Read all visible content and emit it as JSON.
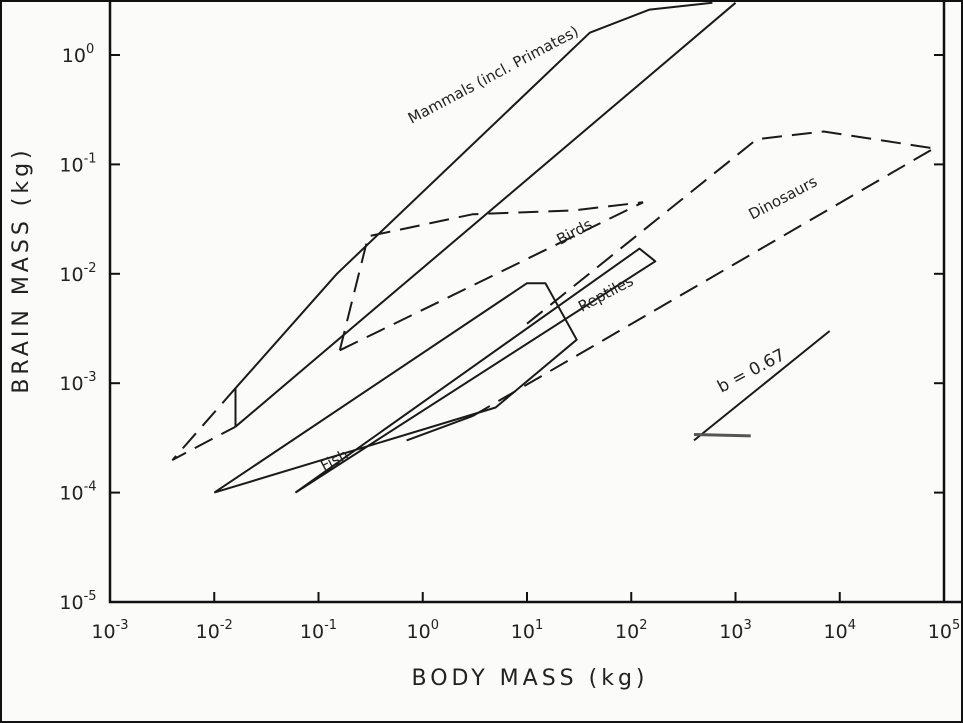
{
  "chart_data": {
    "type": "line",
    "xscale": "log",
    "yscale": "log",
    "xlim": [
      0.001,
      100000
    ],
    "ylim": [
      1e-05,
      3
    ],
    "xlabel": "BODY MASS (kg)",
    "ylabel": "BRAIN MASS (kg)",
    "x_tick_values": [
      0.001,
      0.01,
      0.1,
      1,
      10,
      100,
      1000,
      10000,
      100000
    ],
    "y_tick_values": [
      1e-05,
      0.0001,
      0.001,
      0.01,
      0.1,
      1
    ],
    "x_ticks": [
      {
        "m": "10",
        "e": "-3"
      },
      {
        "m": "10",
        "e": "-2"
      },
      {
        "m": "10",
        "e": "-1"
      },
      {
        "m": "10",
        "e": "0"
      },
      {
        "m": "10",
        "e": "1"
      },
      {
        "m": "10",
        "e": "2"
      },
      {
        "m": "10",
        "e": "3"
      },
      {
        "m": "10",
        "e": "4"
      },
      {
        "m": "10",
        "e": "5"
      }
    ],
    "y_ticks": [
      {
        "m": "10",
        "e": "-5"
      },
      {
        "m": "10",
        "e": "-4"
      },
      {
        "m": "10",
        "e": "-3"
      },
      {
        "m": "10",
        "e": "-2"
      },
      {
        "m": "10",
        "e": "-1"
      },
      {
        "m": "10",
        "e": "0"
      }
    ],
    "series": [
      {
        "name": "Mammals (incl. Primates)",
        "label_at": [
          5,
          0.6
        ],
        "lines": [
          {
            "style": "solid",
            "points": [
              [
                0.016,
                0.0009
              ],
              [
                0.15,
                0.01
              ],
              [
                40,
                1.6
              ],
              [
                150,
                2.6
              ],
              [
                600,
                3
              ]
            ]
          },
          {
            "style": "solid",
            "points": [
              [
                0.016,
                0.0004
              ],
              [
                1000,
                3
              ]
            ]
          },
          {
            "style": "solid",
            "points": [
              [
                0.016,
                0.0009
              ],
              [
                0.016,
                0.0004
              ]
            ]
          },
          {
            "style": "dashed",
            "points": [
              [
                0.016,
                0.0009
              ],
              [
                0.004,
                0.0002
              ],
              [
                0.016,
                0.0004
              ]
            ]
          }
        ]
      },
      {
        "name": "Birds",
        "label_at": [
          30,
          0.022
        ],
        "lines": [
          {
            "style": "dashed",
            "points": [
              [
                0.16,
                0.002
              ],
              [
                0.3,
                0.022
              ],
              [
                3,
                0.035
              ],
              [
                28,
                0.038
              ],
              [
                130,
                0.045
              ]
            ]
          },
          {
            "style": "dashed",
            "points": [
              [
                0.16,
                0.002
              ],
              [
                130,
                0.045
              ]
            ]
          }
        ]
      },
      {
        "name": "Reptiles",
        "label_at": [
          60,
          0.006
        ],
        "lines": [
          {
            "style": "solid",
            "points": [
              [
                0.01,
                0.0001
              ],
              [
                10,
                0.0082
              ],
              [
                15,
                0.0082
              ],
              [
                30,
                0.0025
              ],
              [
                5,
                0.0006
              ],
              [
                0.01,
                0.0001
              ]
            ]
          },
          {
            "style": "solid",
            "points": [
              [
                0.06,
                0.0001
              ],
              [
                120,
                0.017
              ],
              [
                170,
                0.013
              ],
              [
                0.06,
                0.0001
              ]
            ]
          }
        ]
      },
      {
        "name": "Fish",
        "label_at": [
          0.15,
          0.00018
        ],
        "lines": []
      },
      {
        "name": "Dinosaurs",
        "label_at": [
          3000,
          0.045
        ],
        "lines": [
          {
            "style": "dashed",
            "points": [
              [
                10,
                0.0035
              ],
              [
                1600,
                0.17
              ],
              [
                7000,
                0.2
              ],
              [
                80000,
                0.14
              ]
            ]
          },
          {
            "style": "dashed",
            "points": [
              [
                3,
                0.0005
              ],
              [
                80000,
                0.14
              ]
            ]
          },
          {
            "style": "solid",
            "points": [
              [
                3,
                0.0005
              ],
              [
                0.7,
                0.0003
              ]
            ]
          }
        ]
      }
    ],
    "slope_indicator": {
      "label": "b = 0.67",
      "points": [
        [
          400,
          0.0003
        ],
        [
          8000,
          0.003
        ]
      ],
      "base": [
        [
          400,
          0.00034
        ],
        [
          1400,
          0.00033
        ]
      ]
    }
  }
}
